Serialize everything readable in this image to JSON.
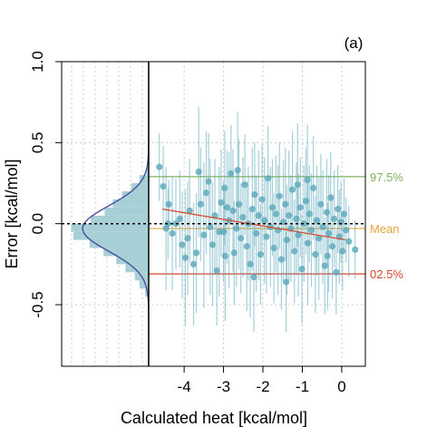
{
  "chart_data": {
    "type": "scatter",
    "panel_tag": "(a)",
    "xlabel": "Calculated heat [kcal/mol]",
    "ylabel": "Error [kcal/mol]",
    "xlim": [
      -4.9,
      0.6
    ],
    "ylim": [
      -0.88,
      1.0
    ],
    "x_ticks": [
      -4,
      -3,
      -2,
      -1,
      0
    ],
    "x_tick_labels": [
      "-4",
      "-3",
      "-2",
      "-1",
      "0"
    ],
    "y_ticks": [
      -0.5,
      0.0,
      0.5,
      1.0
    ],
    "y_tick_labels": [
      "-0.5",
      "0.0",
      "0.5",
      "1.0"
    ],
    "grid": true,
    "reference_lines": [
      {
        "label": "97.5%",
        "y": 0.29,
        "color": "#7fb360"
      },
      {
        "label": "Mean",
        "y": -0.03,
        "color": "#e8a33a"
      },
      {
        "label": "02.5%",
        "y": -0.31,
        "color": "#d9442b"
      }
    ],
    "zero_line": {
      "y": 0.0,
      "style": "dotted",
      "color": "#000000"
    },
    "trend_line": {
      "x": [
        -4.55,
        0.1
      ],
      "y": [
        0.09,
        -0.1
      ],
      "color": "#d9442b"
    },
    "histogram": {
      "bin_edges": [
        -0.45,
        -0.4,
        -0.35,
        -0.3,
        -0.25,
        -0.2,
        -0.15,
        -0.1,
        -0.05,
        0.0,
        0.05,
        0.1,
        0.15,
        0.2,
        0.25,
        0.3,
        0.35
      ],
      "densities": [
        0.15,
        0.4,
        0.6,
        1.0,
        1.4,
        1.95,
        2.55,
        3.25,
        3.35,
        2.5,
        1.9,
        1.55,
        1.15,
        0.75,
        0.4,
        0.1
      ],
      "normal_fit": {
        "mean": -0.03,
        "sd": 0.14
      },
      "bar_color": "#a6cfd6",
      "curve_color": "#4a4fa0"
    },
    "points": [
      {
        "x": -4.63,
        "y": 0.35,
        "err": 0.21
      },
      {
        "x": -4.53,
        "y": 0.23,
        "err": 0.25
      },
      {
        "x": -4.46,
        "y": -0.03,
        "err": 0.38
      },
      {
        "x": -4.41,
        "y": 0.0,
        "err": 0.22
      },
      {
        "x": -4.39,
        "y": 0.12,
        "err": 0.15
      },
      {
        "x": -4.3,
        "y": -0.06,
        "err": 0.35
      },
      {
        "x": -4.21,
        "y": 0.0,
        "err": 0.28
      },
      {
        "x": -4.11,
        "y": 0.03,
        "err": 0.3
      },
      {
        "x": -4.05,
        "y": -0.13,
        "err": 0.33
      },
      {
        "x": -3.97,
        "y": -0.21,
        "err": 0.42
      },
      {
        "x": -3.91,
        "y": -0.09,
        "err": 0.35
      },
      {
        "x": -3.86,
        "y": 0.08,
        "err": 0.32
      },
      {
        "x": -3.76,
        "y": -0.25,
        "err": 0.38
      },
      {
        "x": -3.63,
        "y": 0.32,
        "err": 0.4
      },
      {
        "x": -3.58,
        "y": 0.12,
        "err": 0.35
      },
      {
        "x": -3.5,
        "y": -0.07,
        "err": 0.45
      },
      {
        "x": -3.44,
        "y": 0.19,
        "err": 0.38
      },
      {
        "x": -3.38,
        "y": 0.26,
        "err": 0.3
      },
      {
        "x": -3.34,
        "y": -0.02,
        "err": 0.42
      },
      {
        "x": -3.28,
        "y": -0.13,
        "err": 0.38
      },
      {
        "x": -3.22,
        "y": 0.05,
        "err": 0.35
      },
      {
        "x": -3.17,
        "y": -0.29,
        "err": 0.34
      },
      {
        "x": -3.11,
        "y": -0.05,
        "err": 0.4
      },
      {
        "x": -3.06,
        "y": 0.13,
        "err": 0.33
      },
      {
        "x": -3.0,
        "y": -0.05,
        "err": 0.31
      },
      {
        "x": -2.96,
        "y": -0.2,
        "err": 0.4
      },
      {
        "x": -2.91,
        "y": 0.1,
        "err": 0.35
      },
      {
        "x": -2.86,
        "y": 0.02,
        "err": 0.42
      },
      {
        "x": -2.81,
        "y": 0.31,
        "err": 0.3
      },
      {
        "x": -2.76,
        "y": 0.08,
        "err": 0.38
      },
      {
        "x": -2.73,
        "y": -0.18,
        "err": 0.32
      },
      {
        "x": -2.67,
        "y": -0.03,
        "err": 0.36
      },
      {
        "x": -2.61,
        "y": 0.12,
        "err": 0.4
      },
      {
        "x": -2.56,
        "y": -0.09,
        "err": 0.34
      },
      {
        "x": -2.51,
        "y": 0.04,
        "err": 0.37
      },
      {
        "x": -2.46,
        "y": 0.24,
        "err": 0.31
      },
      {
        "x": -2.41,
        "y": -0.14,
        "err": 0.4
      },
      {
        "x": -2.37,
        "y": 0.0,
        "err": 0.35
      },
      {
        "x": -2.32,
        "y": -0.25,
        "err": 0.33
      },
      {
        "x": -2.27,
        "y": 0.09,
        "err": 0.38
      },
      {
        "x": -2.21,
        "y": 0.18,
        "err": 0.32
      },
      {
        "x": -2.17,
        "y": -0.06,
        "err": 0.36
      },
      {
        "x": -2.11,
        "y": 0.05,
        "err": 0.4
      },
      {
        "x": -2.06,
        "y": -0.19,
        "err": 0.31
      },
      {
        "x": -2.02,
        "y": 0.15,
        "err": 0.34
      },
      {
        "x": -1.96,
        "y": 0.02,
        "err": 0.39
      },
      {
        "x": -1.91,
        "y": -0.08,
        "err": 0.35
      },
      {
        "x": -1.87,
        "y": 0.28,
        "err": 0.32
      },
      {
        "x": -1.81,
        "y": -0.02,
        "err": 0.37
      },
      {
        "x": -1.76,
        "y": 0.1,
        "err": 0.3
      },
      {
        "x": -1.72,
        "y": -0.15,
        "err": 0.34
      },
      {
        "x": -1.67,
        "y": 0.06,
        "err": 0.36
      },
      {
        "x": -1.62,
        "y": -0.04,
        "err": 0.4
      },
      {
        "x": -1.58,
        "y": 0.17,
        "err": 0.33
      },
      {
        "x": -1.53,
        "y": -0.22,
        "err": 0.31
      },
      {
        "x": -1.48,
        "y": 0.01,
        "err": 0.38
      },
      {
        "x": -1.43,
        "y": 0.12,
        "err": 0.35
      },
      {
        "x": -1.39,
        "y": -0.1,
        "err": 0.34
      },
      {
        "x": -1.34,
        "y": 0.05,
        "err": 0.4
      },
      {
        "x": -1.29,
        "y": -0.03,
        "err": 0.33
      },
      {
        "x": -1.25,
        "y": 0.21,
        "err": 0.36
      },
      {
        "x": -1.2,
        "y": -0.17,
        "err": 0.32
      },
      {
        "x": -1.15,
        "y": 0.03,
        "err": 0.35
      },
      {
        "x": -1.1,
        "y": -0.07,
        "err": 0.38
      },
      {
        "x": -1.05,
        "y": 0.1,
        "err": 0.31
      },
      {
        "x": -1.01,
        "y": -0.28,
        "err": 0.34
      },
      {
        "x": -0.96,
        "y": 0.0,
        "err": 0.36
      },
      {
        "x": -0.91,
        "y": 0.14,
        "err": 0.33
      },
      {
        "x": -0.86,
        "y": -0.12,
        "err": 0.38
      },
      {
        "x": -0.82,
        "y": 0.06,
        "err": 0.3
      },
      {
        "x": -0.77,
        "y": -0.04,
        "err": 0.35
      },
      {
        "x": -0.72,
        "y": 0.22,
        "err": 0.32
      },
      {
        "x": -0.67,
        "y": -0.19,
        "err": 0.36
      },
      {
        "x": -0.63,
        "y": 0.02,
        "err": 0.34
      },
      {
        "x": -0.58,
        "y": -0.09,
        "err": 0.38
      },
      {
        "x": -0.53,
        "y": 0.12,
        "err": 0.31
      },
      {
        "x": -0.48,
        "y": -0.02,
        "err": 0.35
      },
      {
        "x": -0.43,
        "y": -0.26,
        "err": 0.3
      },
      {
        "x": -0.38,
        "y": 0.07,
        "err": 0.33
      },
      {
        "x": -0.33,
        "y": -0.06,
        "err": 0.36
      },
      {
        "x": -0.28,
        "y": 0.16,
        "err": 0.28
      },
      {
        "x": -0.24,
        "y": -0.14,
        "err": 0.32
      },
      {
        "x": -0.19,
        "y": 0.03,
        "err": 0.3
      },
      {
        "x": -0.14,
        "y": -0.3,
        "err": 0.26
      },
      {
        "x": -0.1,
        "y": 0.09,
        "err": 0.27
      },
      {
        "x": -0.06,
        "y": -0.08,
        "err": 0.29
      },
      {
        "x": -0.02,
        "y": 0.01,
        "err": 0.25
      },
      {
        "x": 0.02,
        "y": -0.17,
        "err": 0.24
      },
      {
        "x": 0.06,
        "y": 0.06,
        "err": 0.22
      },
      {
        "x": 0.11,
        "y": -0.04,
        "err": 0.2
      },
      {
        "x": 0.18,
        "y": -0.11,
        "err": 0.22
      },
      {
        "x": 0.34,
        "y": -0.16,
        "err": 0.18
      },
      {
        "x": -2.64,
        "y": 0.33,
        "err": 0.36
      },
      {
        "x": -1.41,
        "y": -0.36,
        "err": 0.31
      },
      {
        "x": -0.87,
        "y": 0.27,
        "err": 0.34
      },
      {
        "x": -3.69,
        "y": -0.18,
        "err": 0.37
      },
      {
        "x": -2.23,
        "y": -0.33,
        "err": 0.34
      },
      {
        "x": -1.12,
        "y": 0.24,
        "err": 0.38
      },
      {
        "x": -0.36,
        "y": -0.2,
        "err": 0.33
      },
      {
        "x": -2.97,
        "y": 0.22,
        "err": 0.35
      }
    ]
  }
}
